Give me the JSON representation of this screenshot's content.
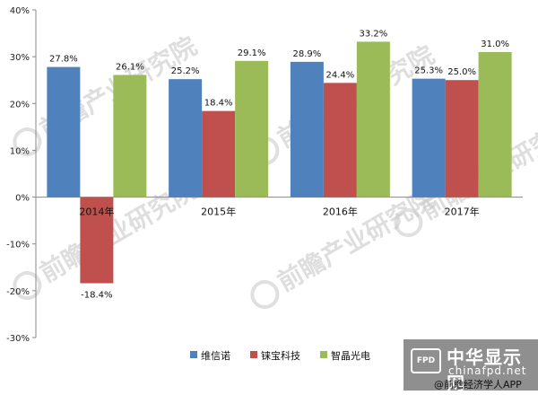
{
  "chart_data": {
    "type": "bar",
    "categories": [
      "2014年",
      "2015年",
      "2016年",
      "2017年"
    ],
    "series": [
      {
        "name": "维信诺",
        "color": "#4f81bd",
        "values": [
          27.8,
          25.2,
          28.9,
          25.3
        ]
      },
      {
        "name": "铼宝科技",
        "color": "#c0504d",
        "values": [
          -18.4,
          18.4,
          24.4,
          25.0
        ]
      },
      {
        "name": "智晶光电",
        "color": "#9bbb59",
        "values": [
          26.1,
          29.1,
          33.2,
          31.0
        ]
      }
    ],
    "value_format": "percent_1dp",
    "ylim": [
      -30,
      40
    ],
    "yticks": [
      -30,
      -20,
      -10,
      0,
      10,
      20,
      30,
      40
    ],
    "ytick_labels": [
      "-30%",
      "-20%",
      "-10%",
      "0%",
      "10%",
      "20%",
      "30%",
      "40%"
    ],
    "xlabel": "",
    "ylabel": "",
    "legend": "bottom",
    "grid": false
  },
  "watermark": {
    "text": "前瞻产业研究院"
  },
  "badge": {
    "logo": "FPD",
    "site_cn": "中华显示网",
    "site_url": "chinafpd.net",
    "app_label": "@前瞻经济学人APP"
  }
}
